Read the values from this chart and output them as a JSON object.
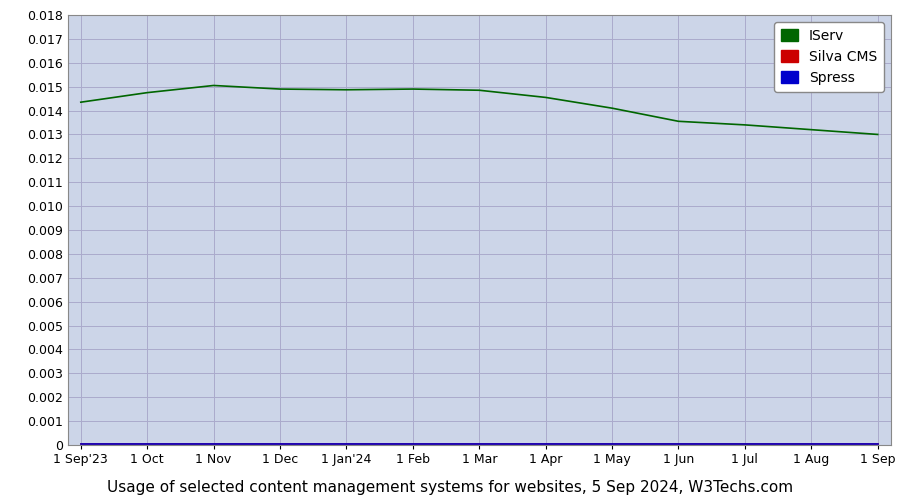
{
  "title": "Usage of selected content management systems for websites, 5 Sep 2024, W3Techs.com",
  "plot_bg_color": "#ccd5e8",
  "outer_bg_color": "#ffffff",
  "ylim": [
    0,
    0.018
  ],
  "yticks": [
    0,
    0.001,
    0.002,
    0.003,
    0.004,
    0.005,
    0.006,
    0.007,
    0.008,
    0.009,
    0.01,
    0.011,
    0.012,
    0.013,
    0.014,
    0.015,
    0.016,
    0.017,
    0.018
  ],
  "x_labels": [
    "1 Sep'23",
    "1 Oct",
    "1 Nov",
    "1 Dec",
    "1 Jan'24",
    "1 Feb",
    "1 Mar",
    "1 Apr",
    "1 May",
    "1 Jun",
    "1 Jul",
    "1 Aug",
    "1 Sep"
  ],
  "iserv_values": [
    0.01435,
    0.01475,
    0.01505,
    0.0149,
    0.01487,
    0.0149,
    0.01485,
    0.01455,
    0.0141,
    0.01355,
    0.0134,
    0.0132,
    0.013
  ],
  "silva_values": [
    5e-05,
    5e-05,
    5e-05,
    5e-05,
    5e-05,
    5e-05,
    5e-05,
    5e-05,
    5e-05,
    5e-05,
    5e-05,
    5e-05,
    5e-05
  ],
  "spress_values": [
    3e-05,
    3e-05,
    3e-05,
    3e-05,
    3e-05,
    3e-05,
    3e-05,
    3e-05,
    3e-05,
    3e-05,
    3e-05,
    3e-05,
    3e-05
  ],
  "iserv_color": "#006600",
  "silva_color": "#cc0000",
  "spress_color": "#0000cc",
  "legend_labels": [
    "IServ",
    "Silva CMS",
    "Spress"
  ],
  "legend_colors": [
    "#006600",
    "#cc0000",
    "#0000cc"
  ],
  "grid_color": "#aaaacc",
  "title_fontsize": 11,
  "tick_fontsize": 9,
  "legend_fontsize": 10
}
